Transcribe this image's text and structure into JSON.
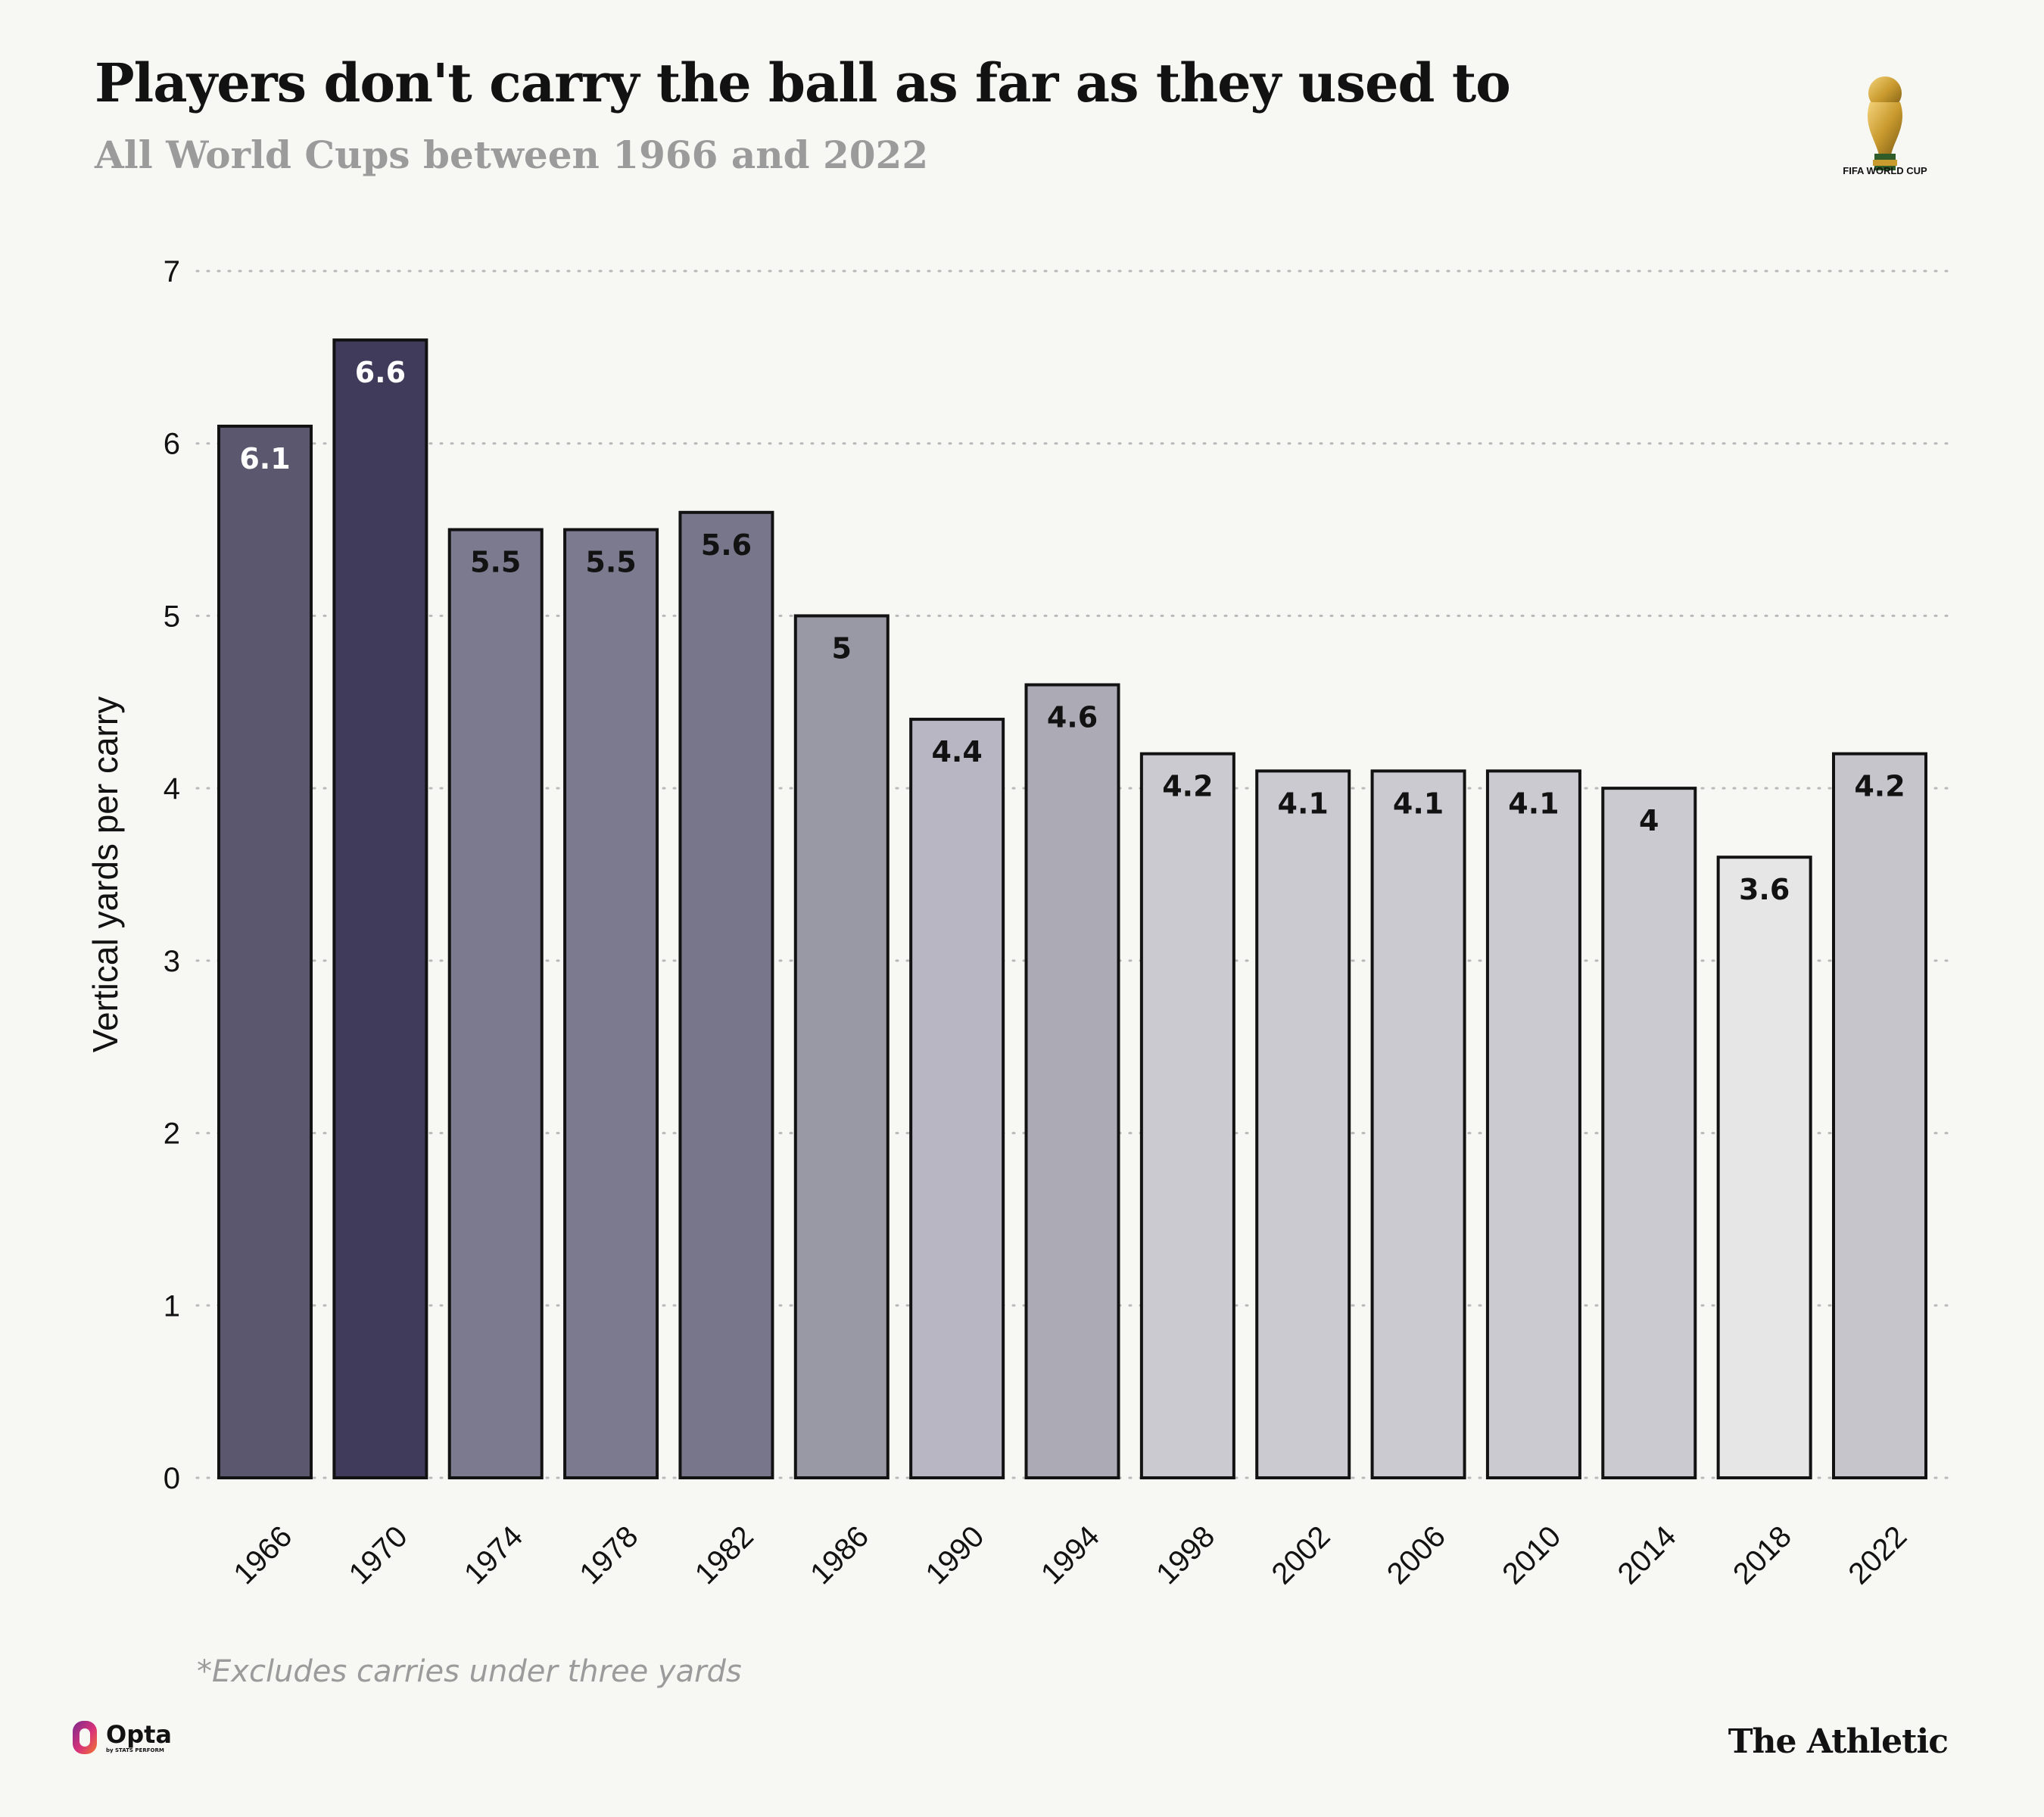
{
  "header": {
    "title": "Players don't carry the ball as far as they used to",
    "subtitle": "All World Cups between 1966 and 2022",
    "trophy_icon": "fifa-world-cup-trophy-icon",
    "trophy_caption": "FIFA WORLD CUP"
  },
  "footer": {
    "note": "*Excludes carries under three yards",
    "source_name": "Opta",
    "source_sub": "by STATS PERFORM",
    "source_icon": "opta-logo-icon",
    "brand": "The Athletic"
  },
  "chart_data": {
    "type": "bar",
    "title": "Players don't carry the ball as far as they used to",
    "subtitle": "All World Cups between 1966 and 2022",
    "xlabel": "",
    "ylabel": "Vertical yards per carry",
    "categories": [
      "1966",
      "1970",
      "1974",
      "1978",
      "1982",
      "1986",
      "1990",
      "1994",
      "1998",
      "2002",
      "2006",
      "2010",
      "2014",
      "2018",
      "2022"
    ],
    "values": [
      6.1,
      6.6,
      5.5,
      5.5,
      5.6,
      5,
      4.4,
      4.6,
      4.2,
      4.1,
      4.1,
      4.1,
      4,
      3.6,
      4.2
    ],
    "data_labels": [
      "6.1",
      "6.6",
      "5.5",
      "5.5",
      "5.6",
      "5",
      "4.4",
      "4.6",
      "4.2",
      "4.1",
      "4.1",
      "4.1",
      "4",
      "3.6",
      "4.2"
    ],
    "ylim": [
      0,
      7
    ],
    "yticks": [
      "0",
      "1",
      "2",
      "3",
      "4",
      "5",
      "6",
      "7"
    ],
    "grid": "horizontal dotted",
    "legend": "none",
    "colors": [
      "#5b576f",
      "#403b5a",
      "#7c7a8f",
      "#7c7a8f",
      "#78768a",
      "#9998a5",
      "#b8b6c2",
      "#acaab5",
      "#cbcad0",
      "#cbcad0",
      "#cbcad0",
      "#cbcad0",
      "#cbcad0",
      "#e6e6e6",
      "#c6c5cb"
    ],
    "label_colors": [
      "#ffffff",
      "#ffffff",
      "#121212",
      "#121212",
      "#121212",
      "#121212",
      "#121212",
      "#121212",
      "#121212",
      "#121212",
      "#121212",
      "#121212",
      "#121212",
      "#121212",
      "#121212"
    ]
  }
}
